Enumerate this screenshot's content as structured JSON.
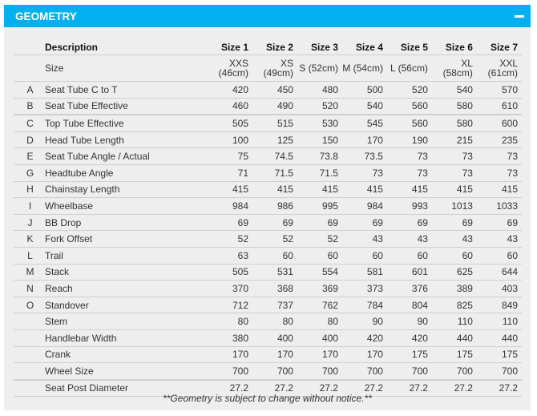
{
  "header": {
    "title": "GEOMETRY",
    "collapse_icon": "minus-icon"
  },
  "colors": {
    "accent": "#03b0ef",
    "panel": "#eeeeee"
  },
  "table": {
    "columns": [
      "Description",
      "Size 1",
      "Size 2",
      "Size 3",
      "Size 4",
      "Size 5",
      "Size 6",
      "Size 7"
    ],
    "size_row": {
      "label": "Size",
      "values": [
        [
          "XXS",
          "(46cm)"
        ],
        [
          "XS",
          "(49cm)"
        ],
        [
          "S (52cm)"
        ],
        [
          "M (54cm)"
        ],
        [
          "L (56cm)"
        ],
        [
          "XL (58cm)"
        ],
        [
          "XXL",
          "(61cm)"
        ]
      ]
    },
    "rows": [
      {
        "letter": "A",
        "desc": "Seat Tube C to T",
        "values": [
          "420",
          "450",
          "480",
          "500",
          "520",
          "540",
          "570"
        ]
      },
      {
        "letter": "B",
        "desc": "Seat Tube Effective",
        "values": [
          "460",
          "490",
          "520",
          "540",
          "560",
          "580",
          "610"
        ]
      },
      {
        "letter": "C",
        "desc": "Top Tube Effective",
        "values": [
          "505",
          "515",
          "530",
          "545",
          "560",
          "580",
          "600"
        ]
      },
      {
        "letter": "D",
        "desc": "Head Tube Length",
        "values": [
          "100",
          "125",
          "150",
          "170",
          "190",
          "215",
          "235"
        ]
      },
      {
        "letter": "E",
        "desc": "Seat Tube Angle / Actual",
        "values": [
          "75",
          "74.5",
          "73.8",
          "73.5",
          "73",
          "73",
          "73"
        ]
      },
      {
        "letter": "G",
        "desc": "Headtube Angle",
        "values": [
          "71",
          "71.5",
          "71.5",
          "73",
          "73",
          "73",
          "73"
        ]
      },
      {
        "letter": "H",
        "desc": "Chainstay Length",
        "values": [
          "415",
          "415",
          "415",
          "415",
          "415",
          "415",
          "415"
        ]
      },
      {
        "letter": "I",
        "desc": "Wheelbase",
        "values": [
          "984",
          "986",
          "995",
          "984",
          "993",
          "1013",
          "1033"
        ]
      },
      {
        "letter": "J",
        "desc": "BB Drop",
        "values": [
          "69",
          "69",
          "69",
          "69",
          "69",
          "69",
          "69"
        ]
      },
      {
        "letter": "K",
        "desc": "Fork Offset",
        "values": [
          "52",
          "52",
          "52",
          "43",
          "43",
          "43",
          "43"
        ]
      },
      {
        "letter": "L",
        "desc": "Trail",
        "values": [
          "63",
          "60",
          "60",
          "60",
          "60",
          "60",
          "60"
        ]
      },
      {
        "letter": "M",
        "desc": "Stack",
        "values": [
          "505",
          "531",
          "554",
          "581",
          "601",
          "625",
          "644"
        ]
      },
      {
        "letter": "N",
        "desc": "Reach",
        "values": [
          "370",
          "368",
          "369",
          "373",
          "376",
          "389",
          "403"
        ]
      },
      {
        "letter": "O",
        "desc": "Standover",
        "values": [
          "712",
          "737",
          "762",
          "784",
          "804",
          "825",
          "849"
        ]
      },
      {
        "letter": "",
        "desc": "Stem",
        "values": [
          "80",
          "80",
          "80",
          "90",
          "90",
          "110",
          "110"
        ]
      },
      {
        "letter": "",
        "desc": "Handlebar Width",
        "values": [
          "380",
          "400",
          "400",
          "420",
          "420",
          "440",
          "440"
        ]
      },
      {
        "letter": "",
        "desc": "Crank",
        "values": [
          "170",
          "170",
          "170",
          "170",
          "175",
          "175",
          "175"
        ]
      },
      {
        "letter": "",
        "desc": "Wheel Size",
        "values": [
          "700",
          "700",
          "700",
          "700",
          "700",
          "700",
          "700"
        ]
      },
      {
        "letter": "",
        "desc": "Seat Post Diameter",
        "values": [
          "27.2",
          "27.2",
          "27.2",
          "27.2",
          "27.2",
          "27.2",
          "27.2"
        ]
      }
    ]
  },
  "footnote": "**Geometry is subject to change without notice.**"
}
